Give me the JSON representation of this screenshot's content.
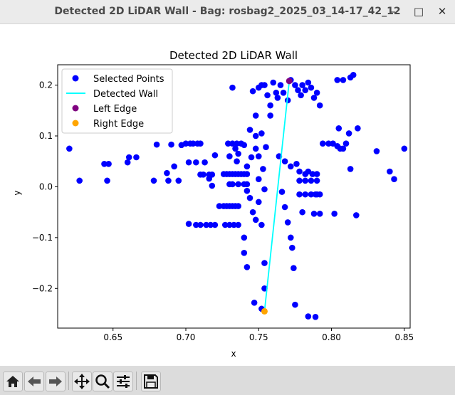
{
  "window": {
    "title": "Detected 2D LiDAR Wall - Bag: rosbag2_2025_03_14-17_42_12"
  },
  "colors": {
    "points": "#0000ff",
    "wall": "#00ffff",
    "left_edge": "#800080",
    "right_edge": "#ffa500"
  },
  "toolbar": {
    "buttons": [
      {
        "name": "home-button",
        "icon": "home-icon"
      },
      {
        "name": "back-button",
        "icon": "arrow-left-icon"
      },
      {
        "name": "forward-button",
        "icon": "arrow-right-icon"
      },
      {
        "name": "pan-button",
        "icon": "move-icon"
      },
      {
        "name": "zoom-button",
        "icon": "magnifier-icon"
      },
      {
        "name": "configure-subplots-button",
        "icon": "sliders-icon"
      },
      {
        "name": "save-button",
        "icon": "floppy-disk-icon"
      }
    ]
  },
  "chart_data": {
    "type": "scatter",
    "title": "Detected 2D LiDAR Wall",
    "xlabel": "x",
    "ylabel": "y",
    "xlim": [
      0.612,
      0.854
    ],
    "ylim": [
      -0.278,
      0.24
    ],
    "xticks": [
      0.65,
      0.7,
      0.75,
      0.8,
      0.85
    ],
    "xtick_labels": [
      "0.65",
      "0.70",
      "0.75",
      "0.80",
      "0.85"
    ],
    "yticks": [
      -0.2,
      -0.1,
      0.0,
      0.1,
      0.2
    ],
    "ytick_labels": [
      "−0.2",
      "−0.1",
      "0.0",
      "0.1",
      "0.2"
    ],
    "legend": {
      "placement": "upper-left",
      "entries": [
        "Selected Points",
        "Detected Wall",
        "Left Edge",
        "Right Edge"
      ]
    },
    "series": [
      {
        "name": "Selected Points",
        "kind": "points",
        "points": [
          [
            0.62,
            0.075
          ],
          [
            0.627,
            0.012
          ],
          [
            0.644,
            0.045
          ],
          [
            0.646,
            0.012
          ],
          [
            0.647,
            0.045
          ],
          [
            0.66,
            0.048
          ],
          [
            0.661,
            0.058
          ],
          [
            0.666,
            0.058
          ],
          [
            0.678,
            0.012
          ],
          [
            0.68,
            0.083
          ],
          [
            0.687,
            0.027
          ],
          [
            0.688,
            0.012
          ],
          [
            0.69,
            0.083
          ],
          [
            0.692,
            0.04
          ],
          [
            0.695,
            0.012
          ],
          [
            0.697,
            0.082
          ],
          [
            0.7,
            0.085
          ],
          [
            0.702,
            0.048
          ],
          [
            0.703,
            0.085
          ],
          [
            0.705,
            0.085
          ],
          [
            0.707,
            0.048
          ],
          [
            0.708,
            0.085
          ],
          [
            0.71,
            0.085
          ],
          [
            0.713,
            0.048
          ],
          [
            0.71,
            0.024
          ],
          [
            0.712,
            0.024
          ],
          [
            0.716,
            0.024
          ],
          [
            0.718,
            0.024
          ],
          [
            0.702,
            -0.073
          ],
          [
            0.707,
            -0.075
          ],
          [
            0.71,
            -0.075
          ],
          [
            0.714,
            -0.075
          ],
          [
            0.717,
            -0.075
          ],
          [
            0.72,
            -0.075
          ],
          [
            0.723,
            -0.038
          ],
          [
            0.718,
            0.002
          ],
          [
            0.716,
            0.016
          ],
          [
            0.72,
            0.062
          ],
          [
            0.726,
            0.025
          ],
          [
            0.728,
            0.025
          ],
          [
            0.73,
            0.025
          ],
          [
            0.732,
            0.025
          ],
          [
            0.734,
            0.025
          ],
          [
            0.736,
            0.025
          ],
          [
            0.738,
            0.025
          ],
          [
            0.74,
            0.025
          ],
          [
            0.742,
            0.025
          ],
          [
            0.726,
            -0.038
          ],
          [
            0.728,
            -0.038
          ],
          [
            0.73,
            -0.038
          ],
          [
            0.732,
            -0.038
          ],
          [
            0.734,
            -0.038
          ],
          [
            0.736,
            -0.038
          ],
          [
            0.73,
            0.005
          ],
          [
            0.732,
            0.005
          ],
          [
            0.736,
            0.005
          ],
          [
            0.74,
            0.005
          ],
          [
            0.742,
            0.005
          ],
          [
            0.729,
            0.085
          ],
          [
            0.732,
            0.085
          ],
          [
            0.735,
            0.085
          ],
          [
            0.738,
            0.085
          ],
          [
            0.727,
            -0.075
          ],
          [
            0.73,
            -0.075
          ],
          [
            0.733,
            -0.075
          ],
          [
            0.736,
            -0.075
          ],
          [
            0.73,
            0.06
          ],
          [
            0.734,
            0.075
          ],
          [
            0.735,
            0.05
          ],
          [
            0.736,
            0.065
          ],
          [
            0.732,
            0.195
          ],
          [
            0.74,
            -0.1
          ],
          [
            0.742,
            -0.008
          ],
          [
            0.744,
            -0.022
          ],
          [
            0.742,
            0.04
          ],
          [
            0.746,
            -0.05
          ],
          [
            0.74,
            -0.13
          ],
          [
            0.742,
            -0.158
          ],
          [
            0.744,
            0.112
          ],
          [
            0.74,
            0.082
          ],
          [
            0.745,
            0.058
          ],
          [
            0.748,
            0.075
          ],
          [
            0.746,
            0.188
          ],
          [
            0.748,
            0.14
          ],
          [
            0.75,
            0.195
          ],
          [
            0.752,
            0.2
          ],
          [
            0.754,
            0.2
          ],
          [
            0.747,
            -0.228
          ],
          [
            0.748,
            -0.065
          ],
          [
            0.748,
            0.1
          ],
          [
            0.75,
            -0.03
          ],
          [
            0.75,
            0.015
          ],
          [
            0.75,
            0.06
          ],
          [
            0.752,
            -0.24
          ],
          [
            0.752,
            -0.075
          ],
          [
            0.752,
            0.105
          ],
          [
            0.753,
            0.035
          ],
          [
            0.754,
            -0.15
          ],
          [
            0.754,
            -0.2
          ],
          [
            0.754,
            -0.005
          ],
          [
            0.755,
            0.078
          ],
          [
            0.756,
            0.18
          ],
          [
            0.758,
            0.16
          ],
          [
            0.758,
            0.14
          ],
          [
            0.76,
            0.205
          ],
          [
            0.762,
            0.185
          ],
          [
            0.763,
            0.175
          ],
          [
            0.765,
            0.2
          ],
          [
            0.767,
            0.185
          ],
          [
            0.77,
            0.17
          ],
          [
            0.772,
            0.21
          ],
          [
            0.775,
            0.2
          ],
          [
            0.777,
            0.19
          ],
          [
            0.779,
            0.18
          ],
          [
            0.78,
            0.2
          ],
          [
            0.782,
            0.19
          ],
          [
            0.784,
            0.205
          ],
          [
            0.786,
            0.195
          ],
          [
            0.788,
            0.175
          ],
          [
            0.79,
            0.185
          ],
          [
            0.792,
            0.16
          ],
          [
            0.764,
            0.06
          ],
          [
            0.768,
            0.05
          ],
          [
            0.772,
            0.04
          ],
          [
            0.776,
            0.045
          ],
          [
            0.778,
            0.03
          ],
          [
            0.782,
            0.025
          ],
          [
            0.784,
            0.03
          ],
          [
            0.787,
            0.025
          ],
          [
            0.79,
            0.025
          ],
          [
            0.794,
            0.085
          ],
          [
            0.798,
            0.085
          ],
          [
            0.801,
            0.085
          ],
          [
            0.804,
            0.08
          ],
          [
            0.806,
            0.075
          ],
          [
            0.808,
            0.075
          ],
          [
            0.81,
            0.085
          ],
          [
            0.805,
            0.115
          ],
          [
            0.812,
            0.105
          ],
          [
            0.818,
            0.115
          ],
          [
            0.813,
            0.215
          ],
          [
            0.815,
            0.22
          ],
          [
            0.808,
            0.21
          ],
          [
            0.804,
            0.21
          ],
          [
            0.813,
            0.035
          ],
          [
            0.778,
            0.012
          ],
          [
            0.782,
            0.012
          ],
          [
            0.786,
            0.012
          ],
          [
            0.79,
            0.012
          ],
          [
            0.778,
            -0.015
          ],
          [
            0.782,
            -0.015
          ],
          [
            0.786,
            -0.015
          ],
          [
            0.789,
            -0.015
          ],
          [
            0.792,
            -0.015
          ],
          [
            0.78,
            -0.05
          ],
          [
            0.788,
            -0.053
          ],
          [
            0.792,
            -0.053
          ],
          [
            0.802,
            -0.053
          ],
          [
            0.817,
            -0.056
          ],
          [
            0.831,
            0.07
          ],
          [
            0.84,
            0.03
          ],
          [
            0.843,
            0.015
          ],
          [
            0.85,
            0.075
          ],
          [
            0.79,
            -0.015
          ],
          [
            0.784,
            -0.255
          ],
          [
            0.789,
            -0.256
          ],
          [
            0.775,
            -0.232
          ],
          [
            0.774,
            -0.16
          ],
          [
            0.773,
            -0.12
          ],
          [
            0.772,
            -0.1
          ],
          [
            0.77,
            -0.07
          ],
          [
            0.768,
            -0.04
          ],
          [
            0.766,
            -0.01
          ]
        ]
      },
      {
        "name": "Detected Wall",
        "kind": "line",
        "points": [
          [
            0.754,
            -0.245
          ],
          [
            0.771,
            0.208
          ]
        ]
      },
      {
        "name": "Left Edge",
        "kind": "marker",
        "points": [
          [
            0.771,
            0.208
          ]
        ]
      },
      {
        "name": "Right Edge",
        "kind": "marker",
        "points": [
          [
            0.754,
            -0.245
          ]
        ]
      }
    ]
  }
}
